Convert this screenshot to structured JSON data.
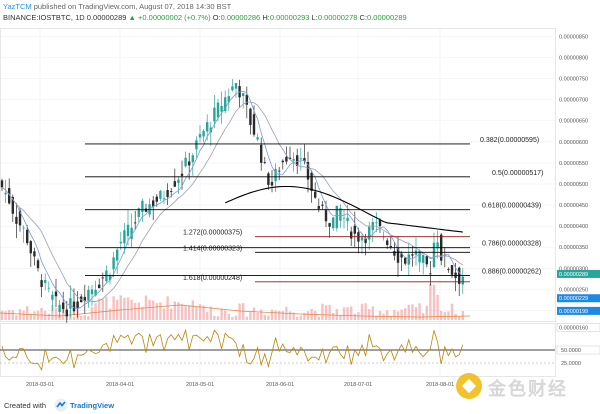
{
  "header": {
    "author": "YazTCM",
    "published_text": "published on TradingView.com, August 07, 2018 14:30 BST",
    "symbol_line": {
      "symbol": "BINANCE:IOSTBTC, 1D",
      "last": "0.00000289",
      "change_arrow": "▲",
      "change": "+0.00000002 (+0.7%)",
      "open_label": "O:",
      "open": "0.00000286",
      "high_label": "H:",
      "high": "0.00000293",
      "low_label": "L:",
      "low": "0.00000278",
      "close_label": "C:",
      "close": "0.00000289"
    }
  },
  "price_axis": {
    "ticks": [
      "0.00000850",
      "0.00000800",
      "0.00000750",
      "0.00000700",
      "0.00000650",
      "0.00000600",
      "0.00000550",
      "0.00000500",
      "0.00000450",
      "0.00000400",
      "0.00000350",
      "0.00000300",
      "0.00000250",
      "0.00000200"
    ],
    "tags": [
      {
        "label": "0.00000289",
        "color": "#26a69a"
      },
      {
        "label": "0.00000229",
        "color": "#1e88e5"
      },
      {
        "label": "0.00000199",
        "color": "#1e88e5"
      },
      {
        "label": "0.00000160",
        "color": "#ffffff"
      }
    ]
  },
  "time_axis": {
    "ticks": [
      "2018-03-01",
      "2018-04-01",
      "2018-05-01",
      "2018-06-01",
      "2018-07-01",
      "2018-08-01"
    ]
  },
  "fib_levels": [
    {
      "label": "0.382(0.00000595)",
      "color": "#000000"
    },
    {
      "label": "0.5(0.00000517)",
      "color": "#000000"
    },
    {
      "label": "0.618(0.00000439)",
      "color": "#000000"
    },
    {
      "label": "1.272(0.00000375)",
      "color": "#8b1a1a"
    },
    {
      "label": "1.414(0.00000323)",
      "color": "#000000"
    },
    {
      "label": "0.786(0.00000328)",
      "color": "#000000"
    },
    {
      "label": "0.886(0.00000262)",
      "color": "#000000"
    },
    {
      "label": "1.618(0.00000248)",
      "color": "#8b1a1a"
    }
  ],
  "rsi_axis": {
    "level_50": "50.0000",
    "level_25": "25.0000"
  },
  "footer": {
    "created_with": "Created with",
    "brand": "TradingView"
  },
  "watermark": {
    "text": "金色财经"
  },
  "colors": {
    "up": "#26a69a",
    "down": "#2b2b2b",
    "ma_fast": "#7b9bd1",
    "ma_slow": "#9e9eb5",
    "ma_200": "#000000",
    "rsi": "#b8860b",
    "volume": "#f4a6a6"
  }
}
